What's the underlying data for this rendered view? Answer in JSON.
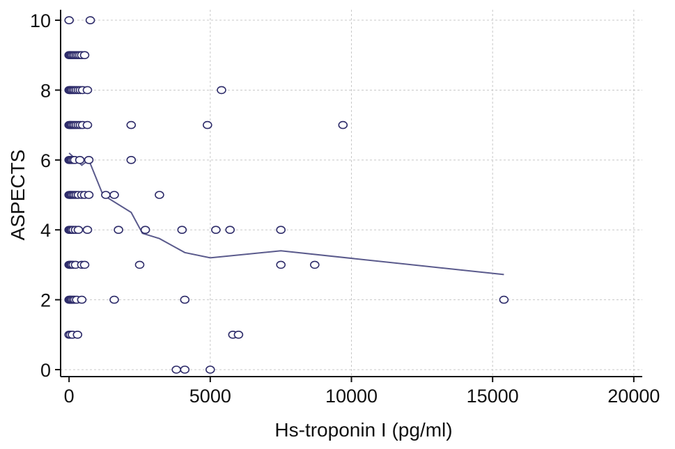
{
  "chart_data": {
    "type": "scatter",
    "title": "",
    "xlabel": "Hs-troponin I (pg/ml)",
    "ylabel": "ASPECTS",
    "xlim": [
      -300,
      20300
    ],
    "ylim": [
      -0.2,
      10.3
    ],
    "xticks": [
      0,
      5000,
      10000,
      15000,
      20000
    ],
    "yticks": [
      0,
      2,
      4,
      6,
      8,
      10
    ],
    "xtick_labels": [
      "0",
      "5000",
      "10000",
      "15000",
      "20000"
    ],
    "ytick_labels": [
      "0",
      "2",
      "4",
      "6",
      "8",
      "10"
    ],
    "grid": true,
    "point_color": "#2e2c6a",
    "line_color": "#5a5a8c",
    "points": [
      [
        0,
        10
      ],
      [
        750,
        10
      ],
      [
        0,
        9
      ],
      [
        30,
        9
      ],
      [
        60,
        9
      ],
      [
        100,
        9
      ],
      [
        150,
        9
      ],
      [
        200,
        9
      ],
      [
        260,
        9
      ],
      [
        320,
        9
      ],
      [
        380,
        9
      ],
      [
        450,
        9
      ],
      [
        550,
        9
      ],
      [
        0,
        8
      ],
      [
        30,
        8
      ],
      [
        60,
        8
      ],
      [
        100,
        8
      ],
      [
        150,
        8
      ],
      [
        200,
        8
      ],
      [
        260,
        8
      ],
      [
        330,
        8
      ],
      [
        400,
        8
      ],
      [
        480,
        8
      ],
      [
        650,
        8
      ],
      [
        5400,
        8
      ],
      [
        0,
        7
      ],
      [
        30,
        7
      ],
      [
        60,
        7
      ],
      [
        100,
        7
      ],
      [
        150,
        7
      ],
      [
        200,
        7
      ],
      [
        260,
        7
      ],
      [
        330,
        7
      ],
      [
        400,
        7
      ],
      [
        480,
        7
      ],
      [
        650,
        7
      ],
      [
        2200,
        7
      ],
      [
        4900,
        7
      ],
      [
        9700,
        7
      ],
      [
        0,
        6
      ],
      [
        30,
        6
      ],
      [
        60,
        6
      ],
      [
        100,
        6
      ],
      [
        150,
        6
      ],
      [
        200,
        6
      ],
      [
        380,
        6
      ],
      [
        700,
        6
      ],
      [
        2200,
        6
      ],
      [
        0,
        5
      ],
      [
        30,
        5
      ],
      [
        60,
        5
      ],
      [
        100,
        5
      ],
      [
        150,
        5
      ],
      [
        200,
        5
      ],
      [
        260,
        5
      ],
      [
        330,
        5
      ],
      [
        450,
        5
      ],
      [
        550,
        5
      ],
      [
        700,
        5
      ],
      [
        1300,
        5
      ],
      [
        1600,
        5
      ],
      [
        3200,
        5
      ],
      [
        0,
        4
      ],
      [
        30,
        4
      ],
      [
        60,
        4
      ],
      [
        100,
        4
      ],
      [
        150,
        4
      ],
      [
        230,
        4
      ],
      [
        330,
        4
      ],
      [
        650,
        4
      ],
      [
        1750,
        4
      ],
      [
        2700,
        4
      ],
      [
        4000,
        4
      ],
      [
        5200,
        4
      ],
      [
        5700,
        4
      ],
      [
        7500,
        4
      ],
      [
        0,
        3
      ],
      [
        30,
        3
      ],
      [
        60,
        3
      ],
      [
        100,
        3
      ],
      [
        150,
        3
      ],
      [
        230,
        3
      ],
      [
        450,
        3
      ],
      [
        550,
        3
      ],
      [
        2500,
        3
      ],
      [
        7500,
        3
      ],
      [
        8700,
        3
      ],
      [
        0,
        2
      ],
      [
        30,
        2
      ],
      [
        60,
        2
      ],
      [
        100,
        2
      ],
      [
        150,
        2
      ],
      [
        200,
        2
      ],
      [
        270,
        2
      ],
      [
        450,
        2
      ],
      [
        1600,
        2
      ],
      [
        4100,
        2
      ],
      [
        15400,
        2
      ],
      [
        0,
        1
      ],
      [
        50,
        1
      ],
      [
        120,
        1
      ],
      [
        300,
        1
      ],
      [
        5800,
        1
      ],
      [
        6000,
        1
      ],
      [
        3800,
        0
      ],
      [
        4100,
        0
      ],
      [
        5000,
        0
      ]
    ],
    "fit_line": [
      [
        0,
        6.2
      ],
      [
        200,
        6.05
      ],
      [
        450,
        5.85
      ],
      [
        700,
        6.0
      ],
      [
        1200,
        5.0
      ],
      [
        2200,
        4.5
      ],
      [
        2600,
        3.9
      ],
      [
        3200,
        3.75
      ],
      [
        4100,
        3.35
      ],
      [
        5000,
        3.2
      ],
      [
        7500,
        3.4
      ],
      [
        15400,
        2.72
      ]
    ]
  }
}
